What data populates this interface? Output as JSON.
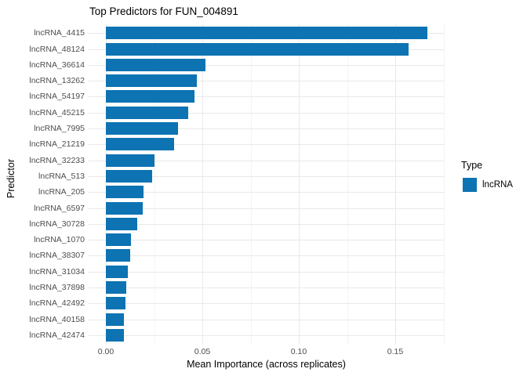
{
  "colors": {
    "bar": "#0d73b2",
    "grid_major": "#e9e9e9",
    "grid_minor": "#f4f4f4",
    "tick_text": "#4d4d4d",
    "title_text": "#000000",
    "background": "#ffffff"
  },
  "legend": {
    "title": "Type",
    "items": [
      {
        "label": "lncRNA",
        "color": "#0d73b2"
      }
    ]
  },
  "chart_data": {
    "type": "bar",
    "orientation": "horizontal",
    "title": "Top Predictors for FUN_004891",
    "xlabel": "Mean Importance (across replicates)",
    "ylabel": "Predictor",
    "categories": [
      "lncRNA_4415",
      "lncRNA_48124",
      "lncRNA_36614",
      "lncRNA_13262",
      "lncRNA_54197",
      "lncRNA_45215",
      "lncRNA_7995",
      "lncRNA_21219",
      "lncRNA_32233",
      "lncRNA_513",
      "lncRNA_205",
      "lncRNA_6597",
      "lncRNA_30728",
      "lncRNA_1070",
      "lncRNA_38307",
      "lncRNA_31034",
      "lncRNA_37898",
      "lncRNA_42492",
      "lncRNA_40158",
      "lncRNA_42474"
    ],
    "values": [
      0.1667,
      0.1569,
      0.0515,
      0.047,
      0.046,
      0.0425,
      0.0373,
      0.0355,
      0.0253,
      0.024,
      0.0195,
      0.019,
      0.0163,
      0.013,
      0.0125,
      0.0114,
      0.0106,
      0.0102,
      0.0094,
      0.0092
    ],
    "series_name": "lncRNA",
    "xlim": [
      0,
      0.175
    ],
    "x_ticks": [
      {
        "value": 0.0,
        "label": "0.00"
      },
      {
        "value": 0.05,
        "label": "0.05"
      },
      {
        "value": 0.1,
        "label": "0.10"
      },
      {
        "value": 0.15,
        "label": "0.15"
      }
    ],
    "x_minor_ticks": [
      0.025,
      0.075,
      0.125,
      0.175
    ],
    "grid": "major+minor",
    "legend_position": "right"
  }
}
